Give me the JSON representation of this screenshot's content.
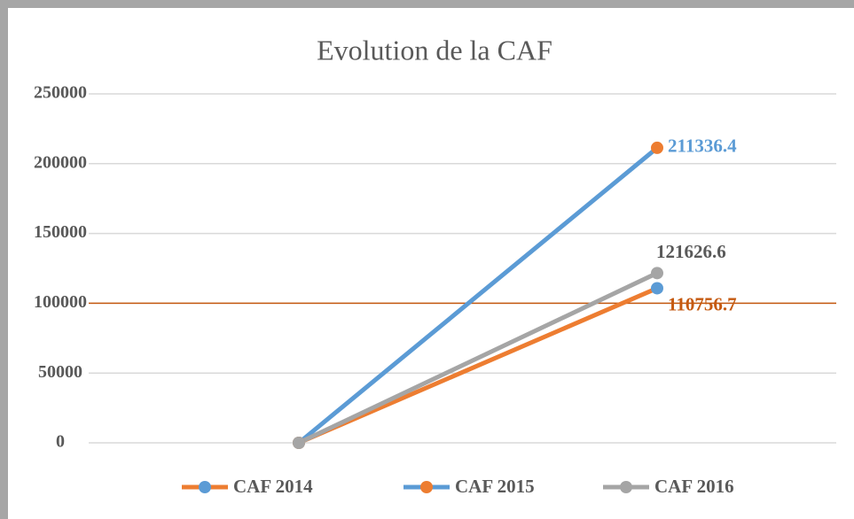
{
  "chart_data": {
    "type": "line",
    "title": "Evolution de la CAF",
    "categories": [
      null,
      null
    ],
    "series": [
      {
        "name": "CAF 2014",
        "color": "#ed7d31",
        "marker_color": "#5b9bd5",
        "label_color": "#c55a11",
        "values": [
          0,
          110756.7
        ],
        "value_labels": [
          null,
          "110756.7"
        ]
      },
      {
        "name": "CAF 2015",
        "color": "#5b9bd5",
        "marker_color": "#ed7d31",
        "label_color": "#5b9bd5",
        "values": [
          0,
          211336.4
        ],
        "value_labels": [
          null,
          "211336.4"
        ]
      },
      {
        "name": "CAF 2016",
        "color": "#a5a5a5",
        "marker_color": "#a5a5a5",
        "label_color": "#595959",
        "values": [
          0,
          121626.6
        ],
        "value_labels": [
          null,
          "121626.6"
        ]
      }
    ],
    "ylim": [
      0,
      250000
    ],
    "yticks": [
      0,
      50000,
      100000,
      150000,
      200000,
      250000
    ],
    "grid": true,
    "reference_line": {
      "value": 100000,
      "color": "#c55a11"
    },
    "legend": "bottom"
  }
}
